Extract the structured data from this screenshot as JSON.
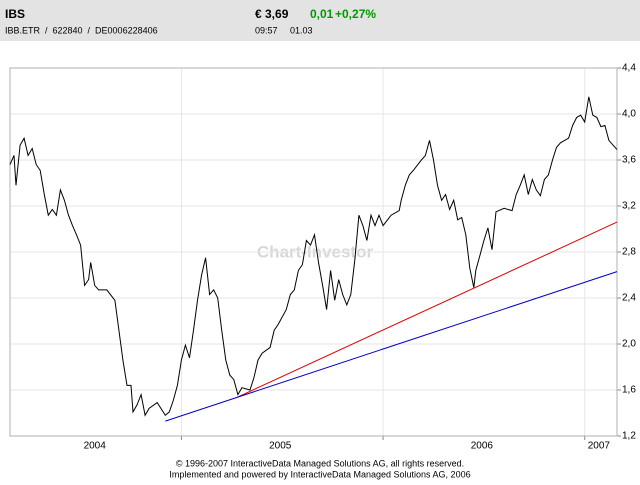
{
  "header": {
    "symbol": "IBS",
    "ids": "IBB.ETR  /  622840  /  DE0006228406",
    "price": "€ 3,69",
    "change": "0,01",
    "change_pct": "+0,27%",
    "time": "09:57",
    "date": "01.03"
  },
  "chart_data": {
    "type": "line",
    "watermark": "Chart-Investor",
    "xlim": [
      2004.15,
      2007.16
    ],
    "ylim": [
      1.2,
      4.4
    ],
    "yticks": [
      {
        "value": 1.2,
        "label": "1,2"
      },
      {
        "value": 1.6,
        "label": "1,6"
      },
      {
        "value": 2.0,
        "label": "2,0"
      },
      {
        "value": 2.4,
        "label": "2,4"
      },
      {
        "value": 2.8,
        "label": "2,8"
      },
      {
        "value": 3.2,
        "label": "3,2"
      },
      {
        "value": 3.6,
        "label": "3,6"
      },
      {
        "value": 4.0,
        "label": "4,0"
      },
      {
        "value": 4.4,
        "label": "4,4"
      }
    ],
    "xticks": [
      {
        "value": 2004.57,
        "label": "2004"
      },
      {
        "value": 2005.49,
        "label": "2005"
      },
      {
        "value": 2006.49,
        "label": "2006"
      },
      {
        "value": 2007.07,
        "label": "2007"
      }
    ],
    "xgrid": [
      2005,
      2006,
      2007
    ],
    "grid": true,
    "series": [
      {
        "color": "#000000",
        "x": [
          2004.15,
          2004.17,
          2004.18,
          2004.2,
          2004.22,
          2004.24,
          2004.26,
          2004.28,
          2004.3,
          2004.32,
          2004.34,
          2004.36,
          2004.38,
          2004.4,
          2004.42,
          2004.44,
          2004.46,
          2004.48,
          2004.5,
          2004.52,
          2004.54,
          2004.55,
          2004.57,
          2004.59,
          2004.63,
          2004.67,
          2004.69,
          2004.71,
          2004.73,
          2004.75,
          2004.76,
          2004.78,
          2004.8,
          2004.82,
          2004.84,
          2004.88,
          2004.92,
          2004.94,
          2004.96,
          2004.98,
          2005.0,
          2005.02,
          2005.04,
          2005.06,
          2005.08,
          2005.1,
          2005.12,
          2005.14,
          2005.16,
          2005.18,
          2005.2,
          2005.22,
          2005.24,
          2005.26,
          2005.28,
          2005.3,
          2005.34,
          2005.36,
          2005.38,
          2005.4,
          2005.44,
          2005.46,
          2005.48,
          2005.52,
          2005.54,
          2005.56,
          2005.58,
          2005.6,
          2005.62,
          2005.64,
          2005.66,
          2005.68,
          2005.7,
          2005.72,
          2005.74,
          2005.76,
          2005.78,
          2005.8,
          2005.82,
          2005.84,
          2005.86,
          2005.88,
          2005.9,
          2005.92,
          2005.94,
          2005.96,
          2005.98,
          2006.0,
          2006.04,
          2006.08,
          2006.09,
          2006.11,
          2006.13,
          2006.15,
          2006.19,
          2006.21,
          2006.23,
          2006.25,
          2006.27,
          2006.29,
          2006.31,
          2006.33,
          2006.35,
          2006.37,
          2006.39,
          2006.41,
          2006.43,
          2006.45,
          2006.46,
          2006.48,
          2006.5,
          2006.52,
          2006.54,
          2006.56,
          2006.6,
          2006.64,
          2006.66,
          2006.68,
          2006.7,
          2006.72,
          2006.74,
          2006.76,
          2006.78,
          2006.8,
          2006.82,
          2006.84,
          2006.86,
          2006.88,
          2006.92,
          2006.94,
          2006.96,
          2006.98,
          2007.0,
          2007.02,
          2007.04,
          2007.06,
          2007.08,
          2007.1,
          2007.12,
          2007.14,
          2007.16
        ],
        "values": [
          3.56,
          3.64,
          3.38,
          3.73,
          3.79,
          3.64,
          3.7,
          3.56,
          3.51,
          3.3,
          3.12,
          3.17,
          3.12,
          3.34,
          3.25,
          3.12,
          3.03,
          2.95,
          2.86,
          2.51,
          2.56,
          2.71,
          2.51,
          2.47,
          2.47,
          2.38,
          2.12,
          1.86,
          1.64,
          1.64,
          1.41,
          1.47,
          1.56,
          1.38,
          1.44,
          1.49,
          1.38,
          1.41,
          1.51,
          1.64,
          1.86,
          1.99,
          1.88,
          2.12,
          2.38,
          2.6,
          2.75,
          2.43,
          2.47,
          2.4,
          2.12,
          1.86,
          1.73,
          1.69,
          1.56,
          1.62,
          1.6,
          1.71,
          1.86,
          1.92,
          1.97,
          2.12,
          2.17,
          2.3,
          2.43,
          2.47,
          2.64,
          2.69,
          2.9,
          2.86,
          2.95,
          2.71,
          2.51,
          2.3,
          2.64,
          2.38,
          2.56,
          2.43,
          2.34,
          2.43,
          2.73,
          3.12,
          3.03,
          2.9,
          3.12,
          3.03,
          3.12,
          3.03,
          3.12,
          3.16,
          3.25,
          3.38,
          3.47,
          3.51,
          3.6,
          3.64,
          3.77,
          3.6,
          3.38,
          3.25,
          3.3,
          3.17,
          3.25,
          3.08,
          3.1,
          2.95,
          2.66,
          2.49,
          2.64,
          2.77,
          2.9,
          3.01,
          2.82,
          3.15,
          3.18,
          3.16,
          3.3,
          3.38,
          3.47,
          3.3,
          3.43,
          3.34,
          3.29,
          3.43,
          3.47,
          3.6,
          3.71,
          3.75,
          3.79,
          3.9,
          3.97,
          3.99,
          3.93,
          4.15,
          3.99,
          3.97,
          3.89,
          3.9,
          3.77,
          3.73,
          3.69
        ]
      },
      {
        "color": "#e00000",
        "x": [
          2005.28,
          2007.16
        ],
        "values": [
          1.54,
          3.06
        ]
      },
      {
        "color": "#0000cc",
        "x": [
          2004.92,
          2007.16
        ],
        "values": [
          1.33,
          2.63
        ]
      }
    ],
    "footer": [
      "© 1996-2007 InteractiveData Managed Solutions  AG, all rights reserved.",
      "Implemented and powered by  InteractiveData Managed Solutions  AG, 2006"
    ]
  }
}
